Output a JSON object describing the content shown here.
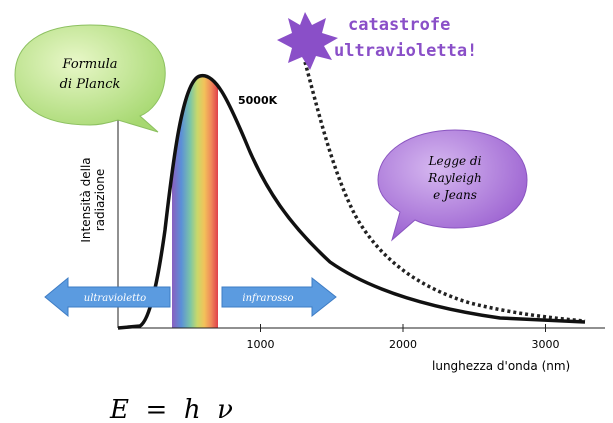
{
  "planck_bubble": {
    "lines": [
      "Formula",
      "di Planck"
    ]
  },
  "rj_bubble": {
    "lines": [
      "Legge di",
      "Rayleigh",
      "e Jeans"
    ]
  },
  "catastrophe": {
    "lines": [
      "catastrofe",
      "ultravioletta!"
    ]
  },
  "curve_label": "5000K",
  "y_axis_label": [
    "Intensità della",
    "radiazione"
  ],
  "x_axis": {
    "label": "lunghezza d'onda (nm)",
    "ticks": [
      1000,
      2000,
      3000
    ]
  },
  "arrows": {
    "left": "ultravioletto",
    "right": "infrarosso"
  },
  "formula": "E  =  h  ν"
}
